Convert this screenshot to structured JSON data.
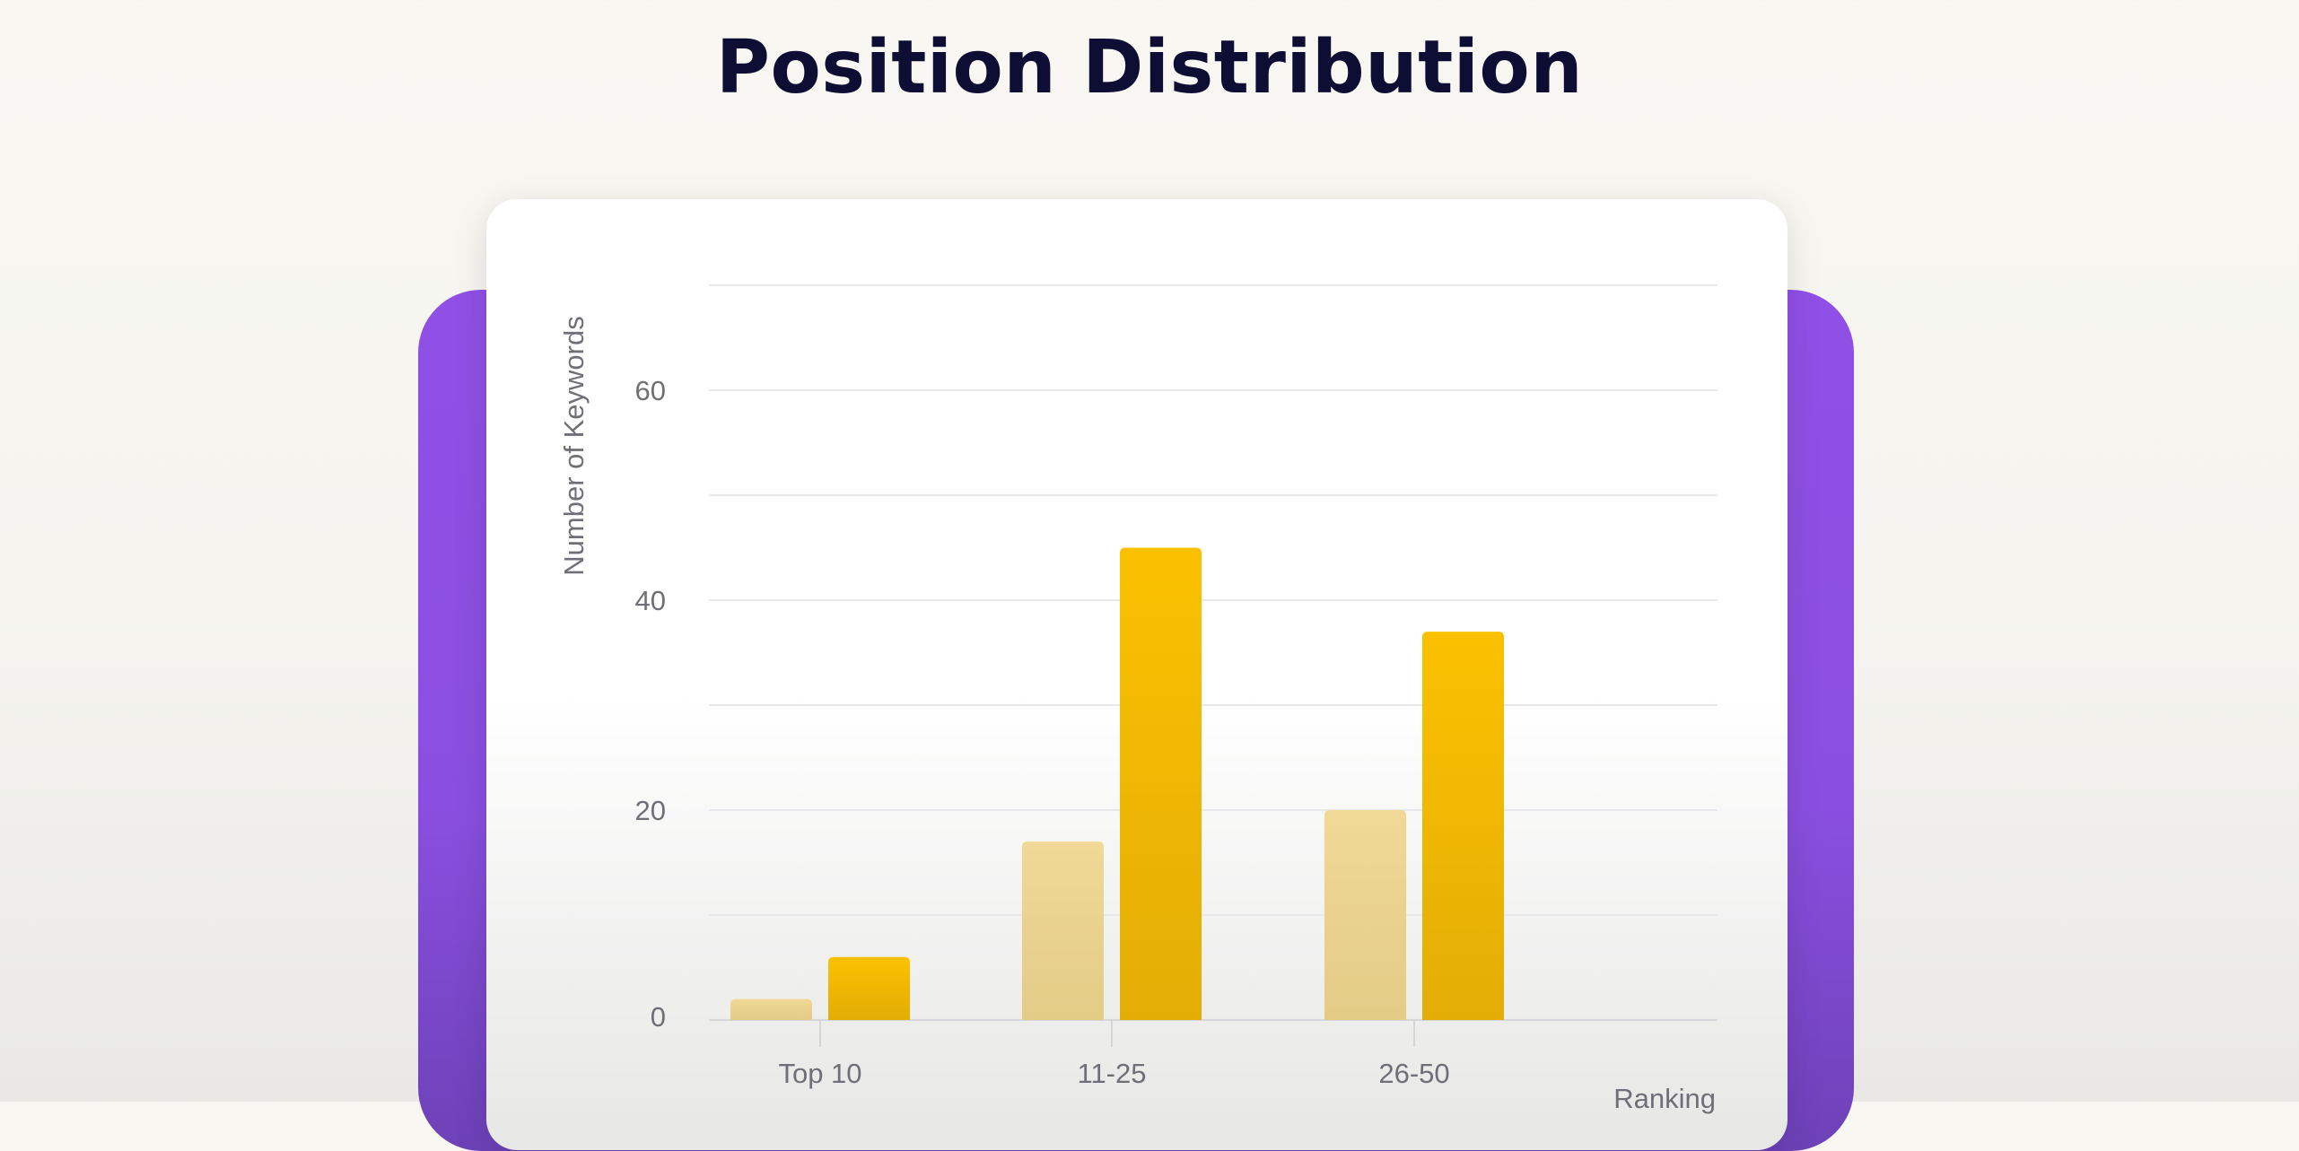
{
  "title": "Position Distribution",
  "colors": {
    "backdrop": "#8a4fe0",
    "card": "#ffffff",
    "series_previous": "#f0d896",
    "series_current": "#fbc100"
  },
  "chart_data": {
    "type": "bar",
    "title": "Position Distribution",
    "xlabel": "Ranking",
    "ylabel": "Number of Keywords",
    "categories": [
      "Top 10",
      "11-25",
      "26-50"
    ],
    "series": [
      {
        "values": [
          2,
          17,
          20
        ]
      },
      {
        "values": [
          6,
          45,
          37
        ]
      }
    ],
    "ylim": [
      0,
      70
    ],
    "yticks": [
      0,
      20,
      40,
      60
    ],
    "grid": true,
    "legend": "none"
  }
}
